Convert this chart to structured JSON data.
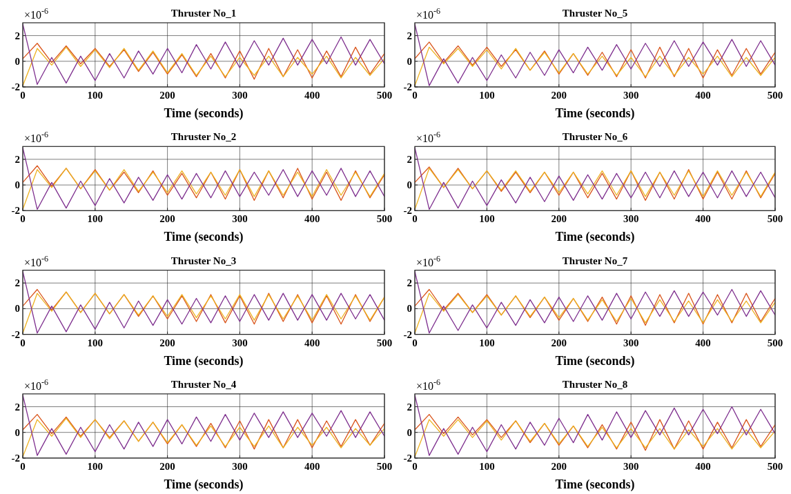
{
  "chart_data": [
    {
      "type": "line",
      "title": "Thruster No_1",
      "xlabel": "Time (seconds)",
      "annotations": [
        "×10$^{-6}$"
      ],
      "xlim": [
        0,
        500
      ],
      "xticks": [
        0,
        100,
        200,
        300,
        400,
        500
      ],
      "ylim": [
        -2,
        3
      ],
      "yticks": [
        -2,
        0,
        2
      ],
      "grid": true,
      "x": [
        0,
        20,
        40,
        60,
        80,
        100,
        120,
        140,
        160,
        180,
        200,
        220,
        240,
        260,
        280,
        300,
        320,
        340,
        360,
        380,
        400,
        420,
        440,
        460,
        480,
        500
      ],
      "series": [
        {
          "color": "#d95319",
          "values": [
            0.2,
            1.4,
            -0.1,
            1.2,
            -0.2,
            1.0,
            -0.4,
            0.9,
            -0.8,
            0.7,
            -1.0,
            0.5,
            -1.2,
            0.6,
            -1.3,
            0.8,
            -1.4,
            1.0,
            -1.2,
            0.9,
            -1.3,
            0.8,
            -1.2,
            1.1,
            -1.0,
            0.6
          ]
        },
        {
          "color": "#edb120",
          "values": [
            -1.9,
            1.0,
            -0.3,
            1.1,
            -0.4,
            0.9,
            -0.5,
            1.0,
            -0.7,
            0.8,
            -0.9,
            0.6,
            -1.1,
            0.4,
            -1.2,
            0.3,
            -1.1,
            0.4,
            -1.2,
            0.3,
            -1.0,
            0.4,
            -1.3,
            0.3,
            -1.1,
            0.2
          ]
        },
        {
          "color": "#7e2f8e",
          "values": [
            2.9,
            -1.8,
            0.3,
            -1.7,
            0.4,
            -1.5,
            0.6,
            -1.3,
            0.8,
            -1.0,
            1.0,
            -0.9,
            1.3,
            -0.6,
            1.5,
            -0.5,
            1.6,
            -0.3,
            1.8,
            -0.3,
            1.7,
            -0.2,
            1.9,
            -0.3,
            1.7,
            -0.2
          ]
        }
      ]
    },
    {
      "type": "line",
      "title": "Thruster No_5",
      "xlabel": "Time (seconds)",
      "annotations": [
        "×10$^{-6}$"
      ],
      "xlim": [
        0,
        500
      ],
      "xticks": [
        0,
        100,
        200,
        300,
        400,
        500
      ],
      "ylim": [
        -2,
        3
      ],
      "yticks": [
        -2,
        0,
        2
      ],
      "grid": true,
      "x": [
        0,
        20,
        40,
        60,
        80,
        100,
        120,
        140,
        160,
        180,
        200,
        220,
        240,
        260,
        280,
        300,
        320,
        340,
        360,
        380,
        400,
        420,
        440,
        460,
        480,
        500
      ],
      "series": [
        {
          "color": "#d95319",
          "values": [
            0.2,
            1.5,
            -0.1,
            1.2,
            -0.3,
            1.1,
            -0.4,
            0.9,
            -0.7,
            0.8,
            -1.0,
            0.6,
            -1.1,
            0.7,
            -1.2,
            0.9,
            -1.3,
            1.1,
            -1.2,
            1.0,
            -1.3,
            0.9,
            -1.1,
            1.0,
            -1.0,
            0.7
          ]
        },
        {
          "color": "#edb120",
          "values": [
            -1.9,
            1.1,
            -0.2,
            1.0,
            -0.4,
            0.9,
            -0.6,
            1.0,
            -0.7,
            0.7,
            -0.9,
            0.6,
            -1.0,
            0.4,
            -1.1,
            0.3,
            -1.2,
            0.4,
            -1.1,
            0.3,
            -1.0,
            0.4,
            -1.2,
            0.3,
            -1.1,
            0.3
          ]
        },
        {
          "color": "#7e2f8e",
          "values": [
            2.9,
            -1.9,
            0.2,
            -1.7,
            0.3,
            -1.5,
            0.5,
            -1.3,
            0.7,
            -1.1,
            0.9,
            -0.9,
            1.1,
            -0.7,
            1.3,
            -0.6,
            1.4,
            -0.4,
            1.6,
            -0.4,
            1.5,
            -0.3,
            1.7,
            -0.4,
            1.6,
            -0.3
          ]
        }
      ]
    },
    {
      "type": "line",
      "title": "Thruster No_2",
      "xlabel": "Time (seconds)",
      "annotations": [
        "×10$^{-6}$"
      ],
      "xlim": [
        0,
        500
      ],
      "xticks": [
        0,
        100,
        200,
        300,
        400,
        500
      ],
      "ylim": [
        -2,
        3
      ],
      "yticks": [
        -2,
        0,
        2
      ],
      "grid": true,
      "x": [
        0,
        20,
        40,
        60,
        80,
        100,
        120,
        140,
        160,
        180,
        200,
        220,
        240,
        260,
        280,
        300,
        320,
        340,
        360,
        380,
        400,
        420,
        440,
        460,
        480,
        500
      ],
      "series": [
        {
          "color": "#d95319",
          "values": [
            0.2,
            1.5,
            -0.1,
            1.3,
            -0.3,
            1.2,
            -0.4,
            1.0,
            -0.6,
            1.1,
            -0.8,
            0.9,
            -1.0,
            1.0,
            -1.1,
            1.2,
            -1.2,
            1.1,
            -1.0,
            1.3,
            -1.1,
            1.0,
            -1.2,
            1.1,
            -1.0,
            0.8
          ]
        },
        {
          "color": "#edb120",
          "values": [
            -1.9,
            1.2,
            -0.2,
            1.3,
            -0.3,
            1.1,
            -0.4,
            1.2,
            -0.5,
            1.0,
            -0.6,
            1.1,
            -0.7,
            1.0,
            -0.8,
            1.2,
            -0.9,
            1.1,
            -0.8,
            1.0,
            -0.9,
            1.2,
            -0.8,
            1.0,
            -0.9,
            0.9
          ]
        },
        {
          "color": "#7e2f8e",
          "values": [
            2.9,
            -1.9,
            0.2,
            -1.8,
            0.3,
            -1.6,
            0.5,
            -1.4,
            0.6,
            -1.2,
            0.8,
            -1.1,
            0.9,
            -1.0,
            1.1,
            -0.9,
            1.0,
            -0.8,
            1.2,
            -0.9,
            1.1,
            -0.8,
            1.3,
            -0.9,
            1.1,
            -0.9
          ]
        }
      ]
    },
    {
      "type": "line",
      "title": "Thruster No_6",
      "xlabel": "Time (seconds)",
      "annotations": [
        "×10$^{-6}$"
      ],
      "xlim": [
        0,
        500
      ],
      "xticks": [
        0,
        100,
        200,
        300,
        400,
        500
      ],
      "ylim": [
        -2,
        3
      ],
      "yticks": [
        -2,
        0,
        2
      ],
      "grid": true,
      "x": [
        0,
        20,
        40,
        60,
        80,
        100,
        120,
        140,
        160,
        180,
        200,
        220,
        240,
        260,
        280,
        300,
        320,
        340,
        360,
        380,
        400,
        420,
        440,
        460,
        480,
        500
      ],
      "series": [
        {
          "color": "#d95319",
          "values": [
            0.2,
            1.4,
            -0.2,
            1.3,
            -0.3,
            1.1,
            -0.5,
            1.0,
            -0.6,
            1.0,
            -0.8,
            1.0,
            -1.0,
            0.9,
            -1.1,
            1.1,
            -1.2,
            1.0,
            -1.1,
            1.2,
            -1.1,
            1.0,
            -1.1,
            1.1,
            -1.0,
            0.9
          ]
        },
        {
          "color": "#edb120",
          "values": [
            -1.9,
            1.3,
            -0.2,
            1.2,
            -0.3,
            1.1,
            -0.4,
            1.1,
            -0.5,
            1.0,
            -0.6,
            1.0,
            -0.7,
            1.1,
            -0.8,
            1.1,
            -0.9,
            1.0,
            -0.8,
            1.1,
            -0.9,
            1.1,
            -0.8,
            1.0,
            -0.9,
            1.0
          ]
        },
        {
          "color": "#7e2f8e",
          "values": [
            2.9,
            -1.9,
            0.2,
            -1.8,
            0.3,
            -1.6,
            0.4,
            -1.4,
            0.6,
            -1.3,
            0.7,
            -1.2,
            0.8,
            -1.1,
            0.9,
            -1.0,
            1.0,
            -1.0,
            1.1,
            -0.9,
            1.0,
            -1.0,
            1.1,
            -0.9,
            1.0,
            -1.0
          ]
        }
      ]
    },
    {
      "type": "line",
      "title": "Thruster No_3",
      "xlabel": "Time (seconds)",
      "annotations": [
        "×10$^{-6}$"
      ],
      "xlim": [
        0,
        500
      ],
      "xticks": [
        0,
        100,
        200,
        300,
        400,
        500
      ],
      "ylim": [
        -2,
        3
      ],
      "yticks": [
        -2,
        0,
        2
      ],
      "grid": true,
      "x": [
        0,
        20,
        40,
        60,
        80,
        100,
        120,
        140,
        160,
        180,
        200,
        220,
        240,
        260,
        280,
        300,
        320,
        340,
        360,
        380,
        400,
        420,
        440,
        460,
        480,
        500
      ],
      "series": [
        {
          "color": "#d95319",
          "values": [
            0.2,
            1.5,
            -0.1,
            1.3,
            -0.3,
            1.2,
            -0.4,
            1.1,
            -0.6,
            1.0,
            -0.8,
            1.0,
            -1.0,
            1.1,
            -1.1,
            1.0,
            -1.2,
            1.2,
            -1.0,
            1.1,
            -1.1,
            1.0,
            -1.2,
            1.1,
            -1.0,
            0.9
          ]
        },
        {
          "color": "#edb120",
          "values": [
            -1.9,
            1.2,
            -0.2,
            1.3,
            -0.3,
            1.2,
            -0.4,
            1.1,
            -0.5,
            1.0,
            -0.6,
            1.1,
            -0.7,
            1.0,
            -0.8,
            1.1,
            -0.9,
            1.1,
            -0.8,
            1.0,
            -0.9,
            1.1,
            -0.8,
            1.0,
            -0.9,
            0.9
          ]
        },
        {
          "color": "#7e2f8e",
          "values": [
            2.9,
            -1.9,
            0.2,
            -1.8,
            0.3,
            -1.6,
            0.5,
            -1.5,
            0.6,
            -1.3,
            0.7,
            -1.2,
            0.8,
            -1.1,
            1.0,
            -1.0,
            1.1,
            -0.9,
            1.2,
            -0.9,
            1.1,
            -0.9,
            1.2,
            -0.8,
            1.1,
            -0.9
          ]
        }
      ]
    },
    {
      "type": "line",
      "title": "Thruster No_7",
      "xlabel": "Time (seconds)",
      "annotations": [
        "×10$^{-6}$"
      ],
      "xlim": [
        0,
        500
      ],
      "xticks": [
        0,
        100,
        200,
        300,
        400,
        500
      ],
      "ylim": [
        -2,
        3
      ],
      "yticks": [
        -2,
        0,
        2
      ],
      "grid": true,
      "x": [
        0,
        20,
        40,
        60,
        80,
        100,
        120,
        140,
        160,
        180,
        200,
        220,
        240,
        260,
        280,
        300,
        320,
        340,
        360,
        380,
        400,
        420,
        440,
        460,
        480,
        500
      ],
      "series": [
        {
          "color": "#d95319",
          "values": [
            0.2,
            1.5,
            -0.1,
            1.2,
            -0.3,
            1.1,
            -0.5,
            1.0,
            -0.7,
            0.9,
            -0.9,
            0.8,
            -1.0,
            0.9,
            -1.2,
            1.0,
            -1.3,
            1.1,
            -1.1,
            1.2,
            -1.2,
            1.1,
            -1.1,
            1.2,
            -1.0,
            0.8
          ]
        },
        {
          "color": "#edb120",
          "values": [
            -1.9,
            1.2,
            -0.2,
            1.1,
            -0.3,
            1.0,
            -0.5,
            1.0,
            -0.6,
            0.9,
            -0.7,
            0.8,
            -0.9,
            0.7,
            -1.0,
            0.8,
            -1.1,
            0.7,
            -1.0,
            0.6,
            -1.1,
            0.7,
            -1.0,
            0.6,
            -1.1,
            0.5
          ]
        },
        {
          "color": "#7e2f8e",
          "values": [
            2.9,
            -1.9,
            0.2,
            -1.7,
            0.3,
            -1.5,
            0.5,
            -1.3,
            0.7,
            -1.1,
            0.9,
            -1.0,
            1.0,
            -0.9,
            1.2,
            -0.8,
            1.3,
            -0.6,
            1.4,
            -0.6,
            1.3,
            -0.5,
            1.5,
            -0.6,
            1.4,
            -0.5
          ]
        }
      ]
    },
    {
      "type": "line",
      "title": "Thruster No_4",
      "xlabel": "Time (seconds)",
      "annotations": [
        "×10$^{-6}$"
      ],
      "xlim": [
        0,
        500
      ],
      "xticks": [
        0,
        100,
        200,
        300,
        400,
        500
      ],
      "ylim": [
        -2,
        3
      ],
      "yticks": [
        -2,
        0,
        2
      ],
      "grid": true,
      "x": [
        0,
        20,
        40,
        60,
        80,
        100,
        120,
        140,
        160,
        180,
        200,
        220,
        240,
        260,
        280,
        300,
        320,
        340,
        360,
        380,
        400,
        420,
        440,
        460,
        480,
        500
      ],
      "series": [
        {
          "color": "#d95319",
          "values": [
            0.2,
            1.4,
            -0.1,
            1.2,
            -0.3,
            1.0,
            -0.4,
            0.9,
            -0.7,
            0.8,
            -0.9,
            0.6,
            -1.1,
            0.7,
            -1.2,
            0.9,
            -1.3,
            1.0,
            -1.2,
            1.0,
            -1.2,
            0.9,
            -1.1,
            1.0,
            -1.0,
            0.7
          ]
        },
        {
          "color": "#edb120",
          "values": [
            -1.9,
            1.0,
            -0.3,
            1.1,
            -0.4,
            1.0,
            -0.5,
            0.9,
            -0.7,
            0.8,
            -0.8,
            0.6,
            -1.0,
            0.5,
            -1.1,
            0.4,
            -1.1,
            0.5,
            -1.2,
            0.4,
            -1.0,
            0.4,
            -1.2,
            0.3,
            -1.0,
            0.3
          ]
        },
        {
          "color": "#7e2f8e",
          "values": [
            2.9,
            -1.8,
            0.3,
            -1.7,
            0.4,
            -1.5,
            0.6,
            -1.3,
            0.8,
            -1.1,
            1.0,
            -0.9,
            1.2,
            -0.7,
            1.4,
            -0.6,
            1.5,
            -0.4,
            1.6,
            -0.4,
            1.5,
            -0.3,
            1.7,
            -0.4,
            1.6,
            -0.3
          ]
        }
      ]
    },
    {
      "type": "line",
      "title": "Thruster No_8",
      "xlabel": "Time (seconds)",
      "annotations": [
        "×10$^{-6}$"
      ],
      "xlim": [
        0,
        500
      ],
      "xticks": [
        0,
        100,
        200,
        300,
        400,
        500
      ],
      "ylim": [
        -2,
        3
      ],
      "yticks": [
        -2,
        0,
        2
      ],
      "grid": true,
      "x": [
        0,
        20,
        40,
        60,
        80,
        100,
        120,
        140,
        160,
        180,
        200,
        220,
        240,
        260,
        280,
        300,
        320,
        340,
        360,
        380,
        400,
        420,
        440,
        460,
        480,
        500
      ],
      "series": [
        {
          "color": "#d95319",
          "values": [
            0.2,
            1.4,
            -0.1,
            1.2,
            -0.2,
            1.0,
            -0.4,
            0.9,
            -0.8,
            0.7,
            -1.0,
            0.5,
            -1.2,
            0.6,
            -1.3,
            0.8,
            -1.4,
            1.0,
            -1.3,
            0.9,
            -1.3,
            0.8,
            -1.2,
            1.0,
            -1.1,
            0.6
          ]
        },
        {
          "color": "#edb120",
          "values": [
            -1.9,
            1.0,
            -0.3,
            1.0,
            -0.4,
            0.9,
            -0.6,
            0.9,
            -0.7,
            0.7,
            -0.9,
            0.5,
            -1.1,
            0.4,
            -1.2,
            0.3,
            -1.2,
            0.3,
            -1.3,
            0.2,
            -1.1,
            0.3,
            -1.3,
            0.2,
            -1.2,
            0.1
          ]
        },
        {
          "color": "#7e2f8e",
          "values": [
            2.9,
            -1.8,
            0.3,
            -1.7,
            0.4,
            -1.5,
            0.6,
            -1.3,
            0.8,
            -1.0,
            1.1,
            -0.8,
            1.4,
            -0.6,
            1.6,
            -0.4,
            1.7,
            -0.2,
            1.9,
            -0.2,
            1.8,
            -0.1,
            2.0,
            -0.2,
            1.8,
            -0.1
          ]
        }
      ]
    }
  ]
}
